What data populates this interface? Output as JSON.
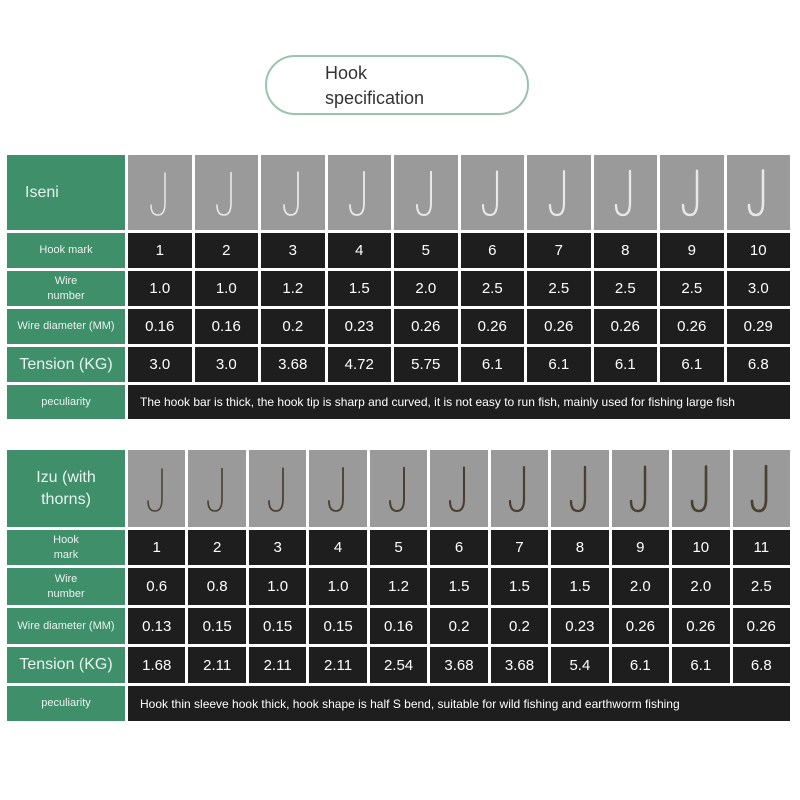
{
  "header": {
    "line1": "Hook",
    "line2": "specification"
  },
  "colors": {
    "green": "#3f8f6b",
    "dark": "#1e1e1e",
    "image_bg": "#9a9a9a"
  },
  "tables": [
    {
      "name": "Iseni",
      "hook_color": "silver",
      "labels": {
        "mark": "Hook mark",
        "wire": "Wire\nnumber",
        "diameter": "Wire diameter (MM)",
        "tension": "Tension (KG)",
        "peculiarity": "peculiarity"
      },
      "hook_mark": [
        "1",
        "2",
        "3",
        "4",
        "5",
        "6",
        "7",
        "8",
        "9",
        "10"
      ],
      "wire_number": [
        "1.0",
        "1.0",
        "1.2",
        "1.5",
        "2.0",
        "2.5",
        "2.5",
        "2.5",
        "2.5",
        "3.0"
      ],
      "wire_diameter": [
        "0.16",
        "0.16",
        "0.2",
        "0.23",
        "0.26",
        "0.26",
        "0.26",
        "0.26",
        "0.26",
        "0.29"
      ],
      "tension": [
        "3.0",
        "3.0",
        "3.68",
        "4.72",
        "5.75",
        "6.1",
        "6.1",
        "6.1",
        "6.1",
        "6.8"
      ],
      "peculiarity": "The hook bar is thick, the hook tip is sharp and curved, it is not easy to run fish, mainly used for fishing large fish"
    },
    {
      "name": "Izu (with thorns)",
      "hook_color": "bronze",
      "labels": {
        "mark": "Hook\nmark",
        "wire": "Wire\nnumber",
        "diameter": "Wire diameter (MM)",
        "tension": "Tension (KG)",
        "peculiarity": "peculiarity"
      },
      "hook_mark": [
        "1",
        "2",
        "3",
        "4",
        "5",
        "6",
        "7",
        "8",
        "9",
        "10",
        "11"
      ],
      "wire_number": [
        "0.6",
        "0.8",
        "1.0",
        "1.0",
        "1.2",
        "1.5",
        "1.5",
        "1.5",
        "2.0",
        "2.0",
        "2.5"
      ],
      "wire_diameter": [
        "0.13",
        "0.15",
        "0.15",
        "0.15",
        "0.16",
        "0.2",
        "0.2",
        "0.23",
        "0.26",
        "0.26",
        "0.26"
      ],
      "tension": [
        "1.68",
        "2.11",
        "2.11",
        "2.11",
        "2.54",
        "3.68",
        "3.68",
        "5.4",
        "6.1",
        "6.1",
        "6.8"
      ],
      "peculiarity": "Hook thin sleeve hook thick, hook shape is half S bend, suitable for wild fishing and earthworm fishing"
    }
  ]
}
